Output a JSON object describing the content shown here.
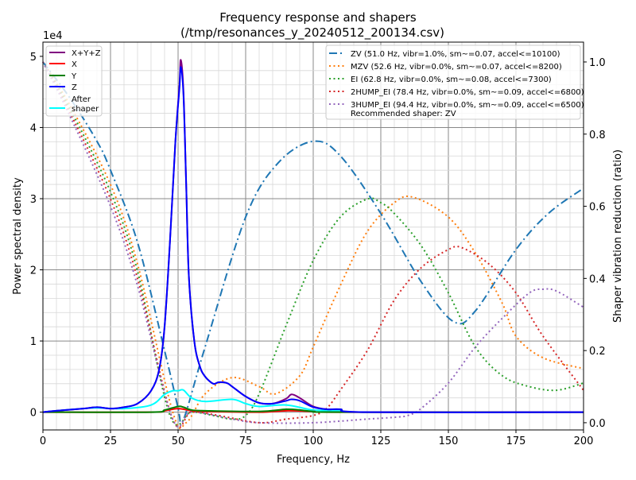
{
  "chart_data": {
    "type": "line",
    "title": "Frequency response and shapers",
    "subtitle": "(/tmp/resonances_y_20240512_200134.csv)",
    "xlabel": "Frequency, Hz",
    "ylabel": "Power spectral density",
    "y2label": "Shaper vibration reduction (ratio)",
    "y_multiplier_label": "1e4",
    "xlim": [
      0,
      200
    ],
    "ylim": [
      -0.25,
      5.2
    ],
    "y2lim": [
      -0.02,
      1.055
    ],
    "xticks": [
      "0",
      "25",
      "50",
      "75",
      "100",
      "125",
      "150",
      "175",
      "200"
    ],
    "yticks": [
      "0",
      "1",
      "2",
      "3",
      "4",
      "5"
    ],
    "y2ticks": [
      "0.0",
      "0.2",
      "0.4",
      "0.6",
      "0.8",
      "1.0"
    ],
    "grid": true,
    "legend_left_placement": "top-left",
    "legend_right_placement": "top-right",
    "psd_series": [
      {
        "name": "X+Y+Z",
        "color": "#800080",
        "x": [
          0,
          5,
          15,
          20,
          25,
          30,
          35,
          40,
          43,
          45,
          47,
          49,
          50.5,
          51,
          52,
          53,
          54,
          56,
          58,
          60,
          63,
          65,
          68,
          70,
          75,
          80,
          85,
          90,
          92,
          95,
          100,
          105,
          110,
          120,
          200
        ],
        "y": [
          0,
          0.02,
          0.05,
          0.07,
          0.05,
          0.07,
          0.12,
          0.3,
          0.6,
          1.2,
          2.4,
          3.8,
          4.6,
          4.95,
          4.5,
          3.2,
          1.9,
          1.0,
          0.65,
          0.5,
          0.4,
          0.42,
          0.41,
          0.36,
          0.22,
          0.13,
          0.12,
          0.19,
          0.25,
          0.2,
          0.08,
          0.04,
          0.04,
          0,
          0
        ]
      },
      {
        "name": "X",
        "color": "#ff0000",
        "x": [
          0,
          40,
          45,
          50,
          55,
          60,
          80,
          90,
          100,
          110,
          200
        ],
        "y": [
          0,
          0,
          0.02,
          0.05,
          0.02,
          0.01,
          0,
          0.02,
          0.01,
          0,
          0
        ]
      },
      {
        "name": "Y",
        "color": "#008000",
        "x": [
          0,
          40,
          45,
          50,
          52,
          55,
          60,
          80,
          90,
          95,
          100,
          110,
          200
        ],
        "y": [
          0,
          0,
          0.03,
          0.08,
          0.07,
          0.03,
          0.02,
          0.01,
          0.04,
          0.03,
          0.01,
          0,
          0
        ]
      },
      {
        "name": "Z",
        "color": "#0000ff",
        "x": [
          0,
          5,
          15,
          20,
          25,
          30,
          35,
          40,
          43,
          45,
          47,
          49,
          50.5,
          51,
          52,
          53,
          54,
          56,
          58,
          60,
          63,
          65,
          68,
          70,
          75,
          80,
          85,
          90,
          92,
          95,
          100,
          105,
          110,
          120,
          200
        ],
        "y": [
          0,
          0.02,
          0.05,
          0.07,
          0.05,
          0.07,
          0.12,
          0.3,
          0.6,
          1.2,
          2.4,
          3.8,
          4.55,
          4.85,
          4.45,
          3.2,
          1.9,
          1.0,
          0.65,
          0.5,
          0.4,
          0.42,
          0.41,
          0.36,
          0.22,
          0.13,
          0.12,
          0.16,
          0.18,
          0.16,
          0.07,
          0.04,
          0.04,
          0,
          0
        ]
      },
      {
        "name": "After\nshaper",
        "color": "#00ffff",
        "x": [
          0,
          5,
          15,
          20,
          30,
          40,
          45,
          48,
          50,
          52,
          55,
          60,
          70,
          75,
          80,
          90,
          100,
          110,
          120,
          200
        ],
        "y": [
          0,
          0.02,
          0.05,
          0.06,
          0.05,
          0.1,
          0.25,
          0.3,
          0.3,
          0.31,
          0.2,
          0.15,
          0.18,
          0.12,
          0.08,
          0.1,
          0.03,
          0.02,
          0,
          0
        ]
      }
    ],
    "shaper_series": [
      {
        "name": "ZV (51.0 Hz, vibr=1.0%, sm~=0.07, accel<=10100)",
        "color": "#1f77b4",
        "style": "dashdot",
        "x": [
          0,
          10,
          20,
          25,
          35,
          45,
          50,
          51,
          53,
          60,
          75,
          87,
          100,
          110,
          125,
          140,
          152,
          160,
          175,
          187,
          200
        ],
        "y": [
          1.0,
          0.9,
          0.78,
          0.7,
          0.5,
          0.2,
          0.04,
          0,
          0.03,
          0.21,
          0.57,
          0.72,
          0.78,
          0.74,
          0.58,
          0.39,
          0.28,
          0.31,
          0.48,
          0.58,
          0.65
        ]
      },
      {
        "name": "MZV (52.6 Hz, vibr=0.0%, sm~=0.07, accel<=8200)",
        "color": "#ff7f0e",
        "style": "dotted",
        "x": [
          0,
          10,
          25,
          35,
          48,
          53,
          60,
          70,
          80,
          86,
          95,
          100,
          110,
          120,
          130,
          137,
          150,
          160,
          170,
          175,
          185,
          200
        ],
        "y": [
          1.0,
          0.88,
          0.66,
          0.44,
          0.03,
          0,
          0.08,
          0.125,
          0.1,
          0.08,
          0.13,
          0.21,
          0.38,
          0.53,
          0.61,
          0.625,
          0.57,
          0.47,
          0.33,
          0.24,
          0.18,
          0.15
        ]
      },
      {
        "name": "EI (62.8 Hz, vibr=0.0%, sm~=0.08, accel<=7300)",
        "color": "#2ca02c",
        "style": "dotted",
        "x": [
          0,
          10,
          25,
          35,
          47,
          55,
          63,
          70,
          75,
          80,
          90,
          100,
          110,
          120,
          125,
          130,
          140,
          150,
          160,
          170,
          180,
          190,
          200
        ],
        "y": [
          1.0,
          0.87,
          0.64,
          0.42,
          0.02,
          0.03,
          0.02,
          0.01,
          0.02,
          0.08,
          0.27,
          0.45,
          0.57,
          0.62,
          0.61,
          0.58,
          0.49,
          0.36,
          0.21,
          0.13,
          0.1,
          0.09,
          0.11
        ]
      },
      {
        "name": "2HUMP_EI (78.4 Hz, vibr=0.0%, sm~=0.09, accel<=6800)",
        "color": "#d62728",
        "style": "dotted",
        "x": [
          0,
          10,
          25,
          35,
          48,
          55,
          65,
          80,
          90,
          100,
          105,
          110,
          120,
          130,
          140,
          150,
          155,
          165,
          175,
          185,
          200
        ],
        "y": [
          1.0,
          0.86,
          0.62,
          0.4,
          0.01,
          0.03,
          0.02,
          0,
          0.01,
          0.02,
          0.04,
          0.09,
          0.2,
          0.34,
          0.43,
          0.48,
          0.485,
          0.44,
          0.36,
          0.24,
          0.09
        ]
      },
      {
        "name": "3HUMP_EI (94.4 Hz, vibr=0.0%, sm~=0.09, accel<=6500)",
        "color": "#9467bd",
        "style": "dotted",
        "x": [
          0,
          10,
          25,
          35,
          48,
          55,
          70,
          80,
          100,
          120,
          130,
          135,
          140,
          150,
          160,
          170,
          180,
          185,
          190,
          200
        ],
        "y": [
          1.0,
          0.85,
          0.6,
          0.38,
          0.01,
          0.03,
          0.01,
          0,
          0,
          0.01,
          0.015,
          0.02,
          0.04,
          0.11,
          0.21,
          0.29,
          0.36,
          0.37,
          0.365,
          0.32
        ]
      }
    ],
    "legend_note": "Recommended shaper: ZV"
  }
}
